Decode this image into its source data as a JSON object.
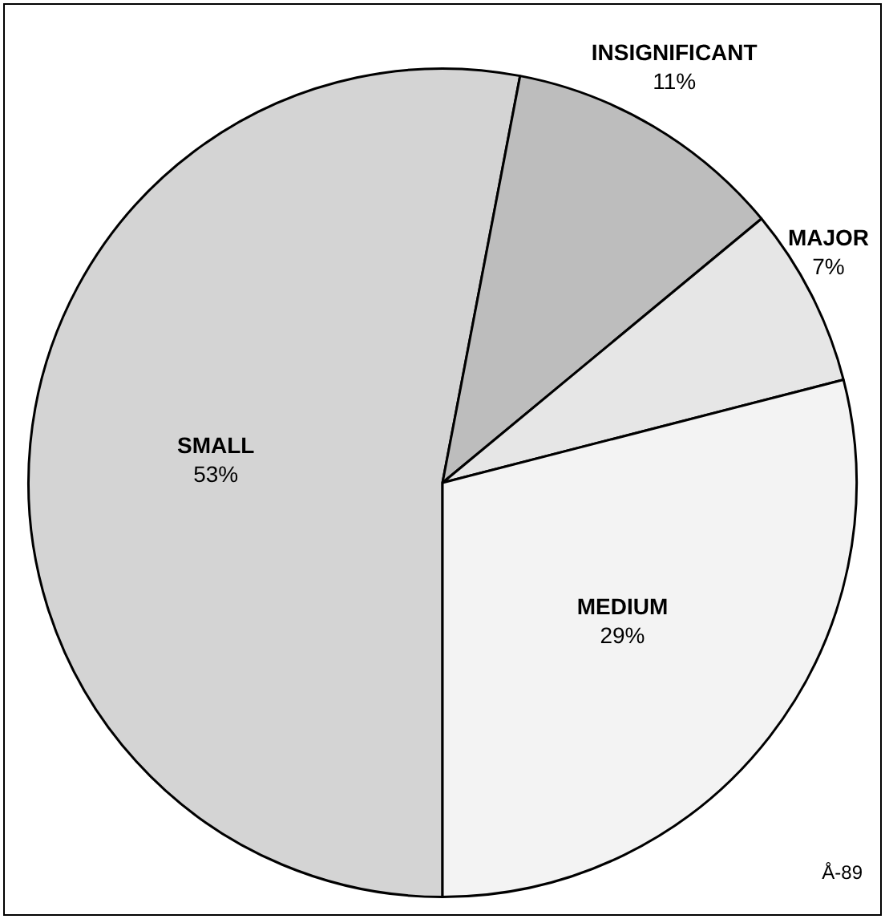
{
  "chart_data": {
    "type": "pie",
    "categories": [
      "SMALL",
      "INSIGNIFICANT",
      "MAJOR",
      "MEDIUM"
    ],
    "values": [
      53,
      11,
      7,
      29
    ],
    "value_labels": [
      "53%",
      "11%",
      "7%",
      "29%"
    ],
    "colors": [
      "#d4d4d4",
      "#bdbdbd",
      "#e6e6e6",
      "#f3f3f3"
    ],
    "legend": false,
    "annotations": [
      "Å-89"
    ]
  }
}
